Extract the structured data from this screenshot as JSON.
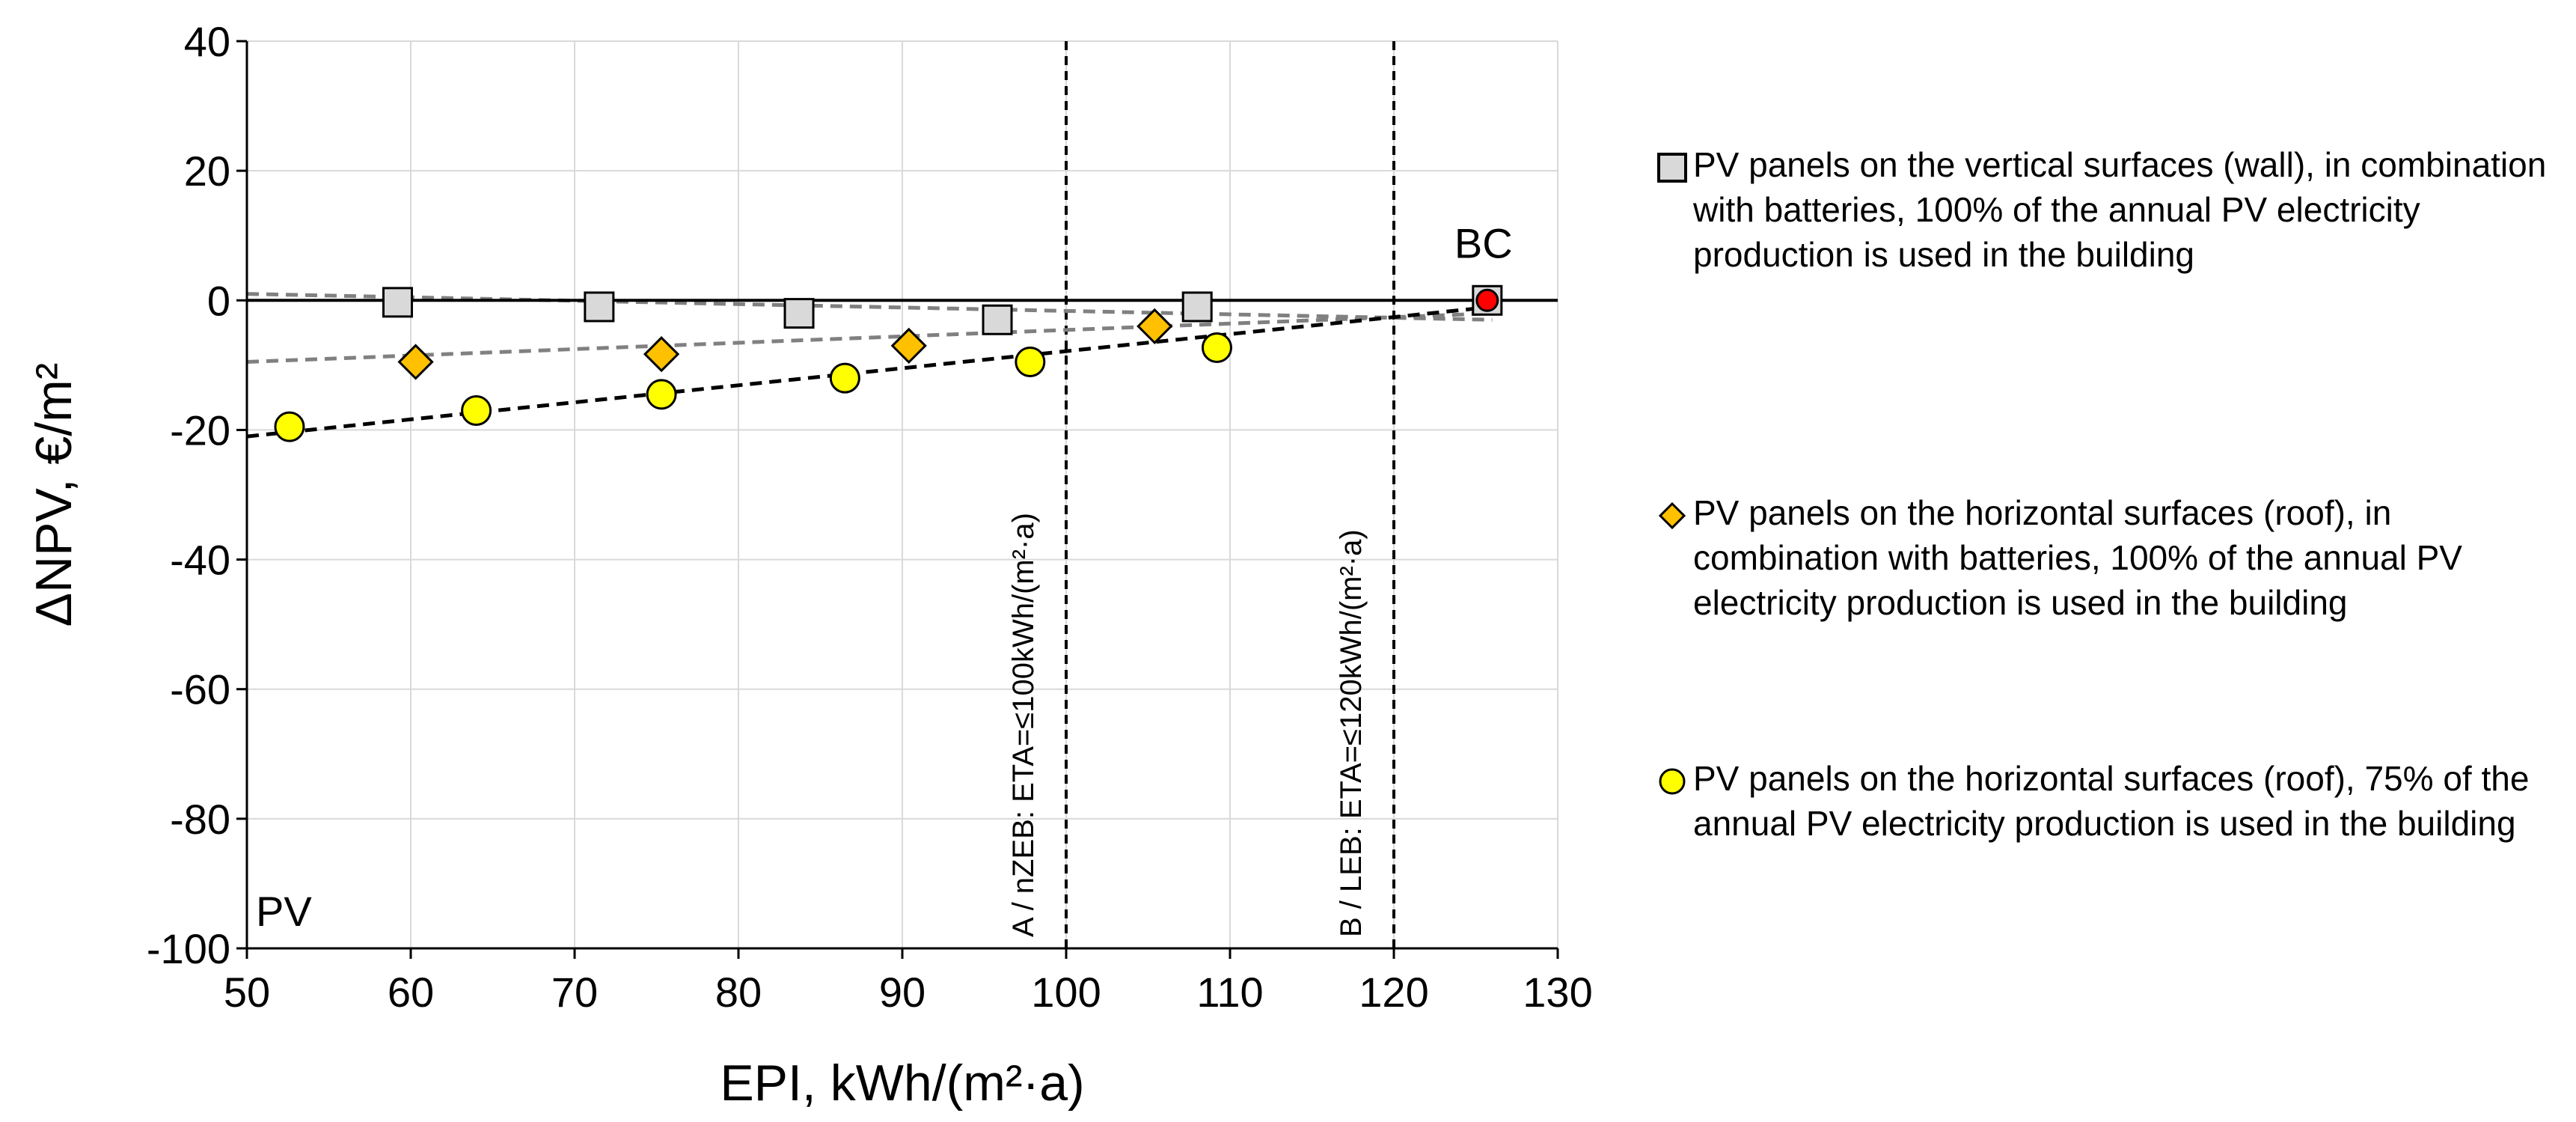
{
  "chart_data": {
    "type": "scatter",
    "title": "",
    "xlabel": "EPI, kWh/(m²·a)",
    "ylabel": "ΔNPV, €/m²",
    "xlim": [
      50,
      130
    ],
    "ylim": [
      -100,
      40
    ],
    "x_ticks": [
      "50",
      "60",
      "70",
      "80",
      "90",
      "100",
      "110",
      "120",
      "130"
    ],
    "y_ticks": [
      "40",
      "20",
      "0",
      "-20",
      "-40",
      "-60",
      "-80",
      "-100"
    ],
    "grid": true,
    "legend_position": "right",
    "series": [
      {
        "name": "PV panels on the vertical surfaces (wall), in combination with batteries, 100% of the annual PV electricity production is used in the building",
        "marker": "square",
        "color": "#d9d9d9",
        "x": [
          59.2,
          71.5,
          83.7,
          95.8,
          108.0
        ],
        "y": [
          -0.3,
          -1.0,
          -2.0,
          -3.0,
          -1.0
        ],
        "trend": {
          "x": [
            50,
            126
          ],
          "y": [
            1.0,
            -3.0
          ],
          "color": "#808080"
        }
      },
      {
        "name": "PV panels on the horizontal surfaces (roof), in combination with batteries, 100% of the annual PV electricity production is used in the building",
        "marker": "diamond",
        "color": "#ffc000",
        "x": [
          60.3,
          75.3,
          90.4,
          105.4
        ],
        "y": [
          -9.5,
          -8.3,
          -7.0,
          -4.0
        ],
        "trend": {
          "x": [
            50,
            126
          ],
          "y": [
            -9.5,
            -2.0
          ],
          "color": "#808080"
        }
      },
      {
        "name": "PV panels on the horizontal surfaces (roof), 75% of the annual PV electricity production is used in the building",
        "marker": "circle",
        "color": "#ffff00",
        "x": [
          52.6,
          64.0,
          75.3,
          86.5,
          97.8,
          109.2
        ],
        "y": [
          -19.5,
          -17.0,
          -14.5,
          -12.0,
          -9.5,
          -7.3
        ],
        "trend": {
          "x": [
            50,
            126
          ],
          "y": [
            -21.0,
            -1.0
          ],
          "color": "#000000"
        }
      }
    ],
    "base_case": {
      "label": "BC",
      "x": 125.7,
      "y": 0,
      "color": "#ff0000"
    },
    "vlines": [
      {
        "x": 100,
        "label": "A / nZEB: ETA=≤100kWh/(m²·a)"
      },
      {
        "x": 120,
        "label": "B / LEB: ETA=≤120kWh/(m²·a)"
      }
    ],
    "corner_label": "PV"
  }
}
